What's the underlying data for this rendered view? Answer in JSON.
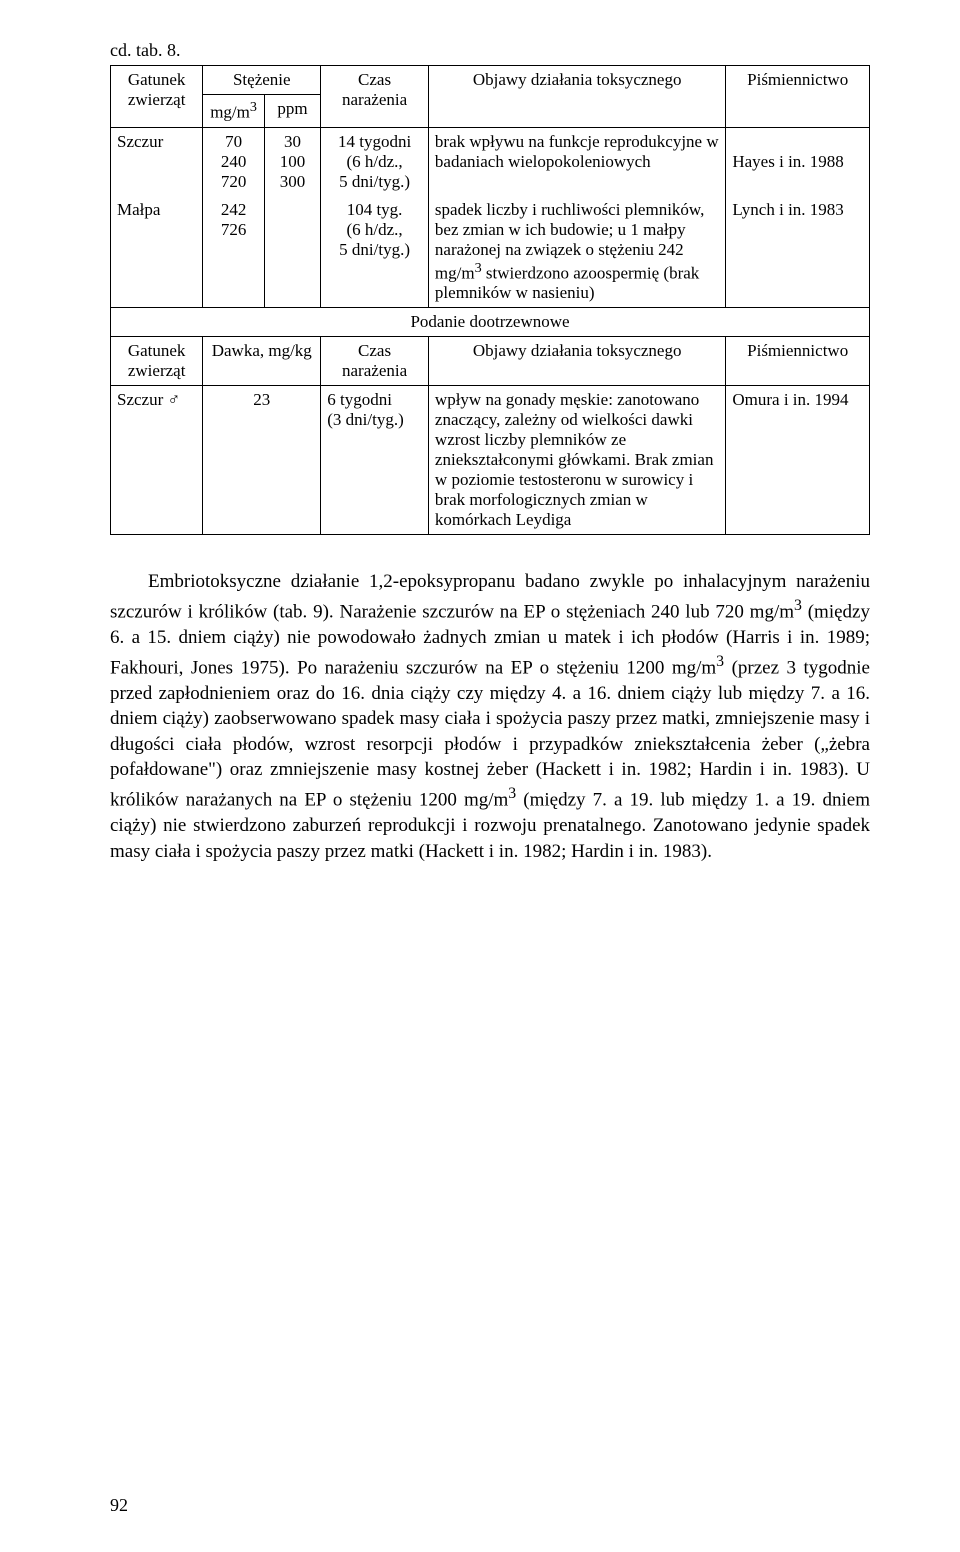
{
  "cont_label": "cd. tab. 8.",
  "t1": {
    "h": {
      "species": "Gatunek zwierząt",
      "conc": "Stężenie",
      "conc_u1": "mg/m",
      "conc_u1_sup": "3",
      "conc_u2": "ppm",
      "time": "Czas narażenia",
      "effects": "Objawy działania toksycznego",
      "ref": "Piśmiennictwo"
    },
    "r1": {
      "species": "Szczur",
      "c_mg_a": "70",
      "c_mg_b": "240",
      "c_mg_c": "720",
      "c_ppm_a": "30",
      "c_ppm_b": "100",
      "c_ppm_c": "300",
      "time_a": "14 tygodni",
      "time_b": "(6 h/dz.,",
      "time_c": "5 dni/tyg.)",
      "eff": "brak wpływu na funkcje reprodukcyjne w badaniach wielopokoleniowych",
      "ref": "Hayes i in. 1988"
    },
    "r2": {
      "species": "Małpa",
      "c_mg_a": "242",
      "c_mg_b": "726",
      "time_a": "104 tyg.",
      "time_b": "(6 h/dz.,",
      "time_c": "5 dni/tyg.)",
      "eff_a": "spadek liczby i ruchliwości plemników, bez zmian w ich budowie; u 1 małpy narażonej na związek o stężeniu 242 mg/m",
      "eff_sup": "3",
      "eff_b": " stwierdzono azoospermię (brak plemników w nasieniu)",
      "ref": "Lynch i in. 1983"
    }
  },
  "section2": "Podanie dootrzewnowe",
  "t2": {
    "h": {
      "species": "Gatunek zwierząt",
      "dose": "Dawka, mg/kg",
      "time": "Czas narażenia",
      "effects": "Objawy działania toksycznego",
      "ref": "Piśmiennictwo"
    },
    "r1": {
      "species": "Szczur ♂",
      "dose": "23",
      "time_a": "6 tygodni",
      "time_b": "(3 dni/tyg.)",
      "eff": "wpływ na gonady męskie: zanotowano znaczący, zależny od wielkości dawki wzrost liczby plemników ze zniekształconymi główkami. Brak zmian w poziomie testosteronu w surowicy i brak morfologicznych zmian w komórkach Leydiga",
      "ref": "Omura i in. 1994"
    }
  },
  "para": {
    "a": "Embriotoksyczne działanie 1,2-epoksypropanu badano zwykle po inhalacyjnym narażeniu szczurów i królików (tab. 9). Narażenie szczurów na EP o stężeniach 240 lub 720 mg/m",
    "s1": "3",
    "b": " (między 6. a 15. dniem ciąży) nie powodowało żadnych zmian u matek i ich płodów (Harris i in. 1989; Fakhouri, Jones 1975). Po narażeniu szczurów na EP o stężeniu 1200 mg/m",
    "s2": "3",
    "c": " (przez 3 tygodnie przed zapłodnieniem oraz do 16. dnia ciąży czy między 4. a 16. dniem ciąży lub między 7. a 16. dniem ciąży) zaobserwowano spadek masy ciała i spożycia paszy przez matki, zmniejszenie masy i długości ciała płodów, wzrost resorpcji płodów i przypadków zniekształcenia żeber („żebra pofałdowane\") oraz zmniejszenie masy kostnej żeber (Hackett i in. 1982; Hardin i in. 1983). U królików narażanych na EP o stężeniu 1200 mg/m",
    "s3": "3",
    "d": " (między 7. a 19. lub między 1. a 19. dniem ciąży) nie stwierdzono zaburzeń reprodukcji i rozwoju prenatalnego. Zanotowano jedynie spadek masy ciała i spożycia paszy przez matki (Hackett i in. 1982; Hardin i in. 1983)."
  },
  "pagenum": "92",
  "col_widths": {
    "c1": "90",
    "c2": "60",
    "c3": "55",
    "c4": "105",
    "c5": "290",
    "c6": "140"
  }
}
